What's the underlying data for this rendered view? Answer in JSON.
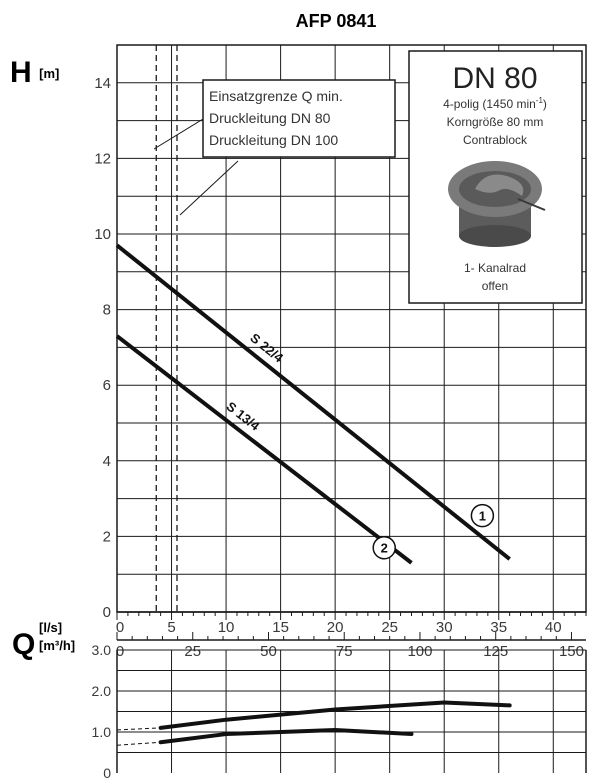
{
  "title": "AFP 0841",
  "y_axis": {
    "symbol": "H",
    "unit": "[m]"
  },
  "x_axis": {
    "symbol": "Q",
    "unit_top": "[l/s]",
    "unit_bottom": "[m³/h]"
  },
  "info_box": {
    "heading": "DN 80",
    "line1_pre": "4-polig (1450 min",
    "line1_sup": "-1",
    "line1_post": ")",
    "line2": "Korngröße 80 mm",
    "line3": "Contrablock",
    "impeller_line1": "1- Kanalrad",
    "impeller_line2": "offen"
  },
  "legend_box": {
    "lines": [
      "Einsatzgrenze Q min.",
      "Druckleitung DN 80",
      "Druckleitung DN 100"
    ]
  },
  "colors": {
    "curve": "#111111",
    "grid": "#1a1a1a",
    "impeller": "#6b6b6b"
  },
  "chart_data": [
    {
      "type": "line",
      "title": "AFP 0841",
      "xlabel": "Q [l/s]",
      "x2label": "Q [m³/h]",
      "ylabel": "H [m]",
      "xlim": [
        0,
        43
      ],
      "ylim": [
        0,
        15
      ],
      "x_ticks": [
        0,
        5,
        10,
        15,
        20,
        25,
        30,
        35,
        40
      ],
      "x2_ticks": [
        0,
        25,
        50,
        75,
        100,
        125,
        150
      ],
      "y_ticks": [
        0,
        2,
        4,
        6,
        8,
        10,
        12,
        14
      ],
      "grid": true,
      "series": [
        {
          "name": "S 22/4",
          "marker": "1",
          "x": [
            0,
            36
          ],
          "y": [
            9.7,
            1.4
          ]
        },
        {
          "name": "S 13/4",
          "marker": "2",
          "x": [
            0,
            27
          ],
          "y": [
            7.3,
            1.3
          ]
        }
      ],
      "vertical_lines": [
        {
          "x": 3.6,
          "style": "dashed",
          "label": "Einsatzgrenze Q min. Druckleitung DN 80"
        },
        {
          "x": 5.5,
          "style": "dashed",
          "label": "Druckleitung DN 100"
        }
      ]
    },
    {
      "type": "line",
      "title": "",
      "xlabel": "Q [m³/h]",
      "ylabel": "",
      "xlim": [
        0,
        43
      ],
      "ylim": [
        0,
        3.0
      ],
      "y_ticks": [
        0,
        1.0,
        2.0,
        3.0
      ],
      "grid": true,
      "series": [
        {
          "marker": "1",
          "x": [
            4,
            10,
            20,
            30,
            36
          ],
          "y": [
            1.1,
            1.3,
            1.55,
            1.72,
            1.65
          ]
        },
        {
          "marker": "2",
          "x": [
            4,
            10,
            20,
            27
          ],
          "y": [
            0.75,
            0.95,
            1.05,
            0.95
          ]
        }
      ]
    }
  ]
}
